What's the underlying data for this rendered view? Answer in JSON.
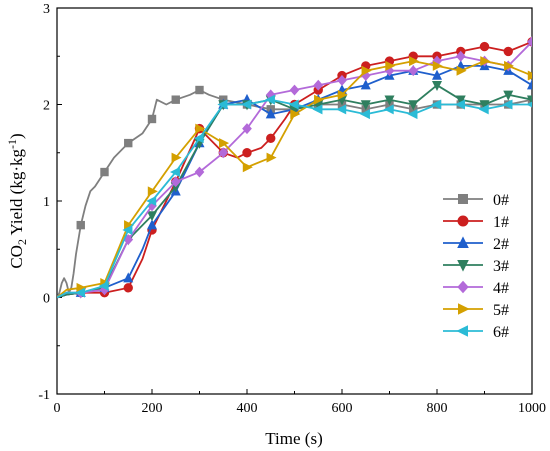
{
  "chart_data": {
    "type": "line",
    "xlabel": "Time (s)",
    "ylabel_main": "CO",
    "ylabel_sub": "2",
    "ylabel_rest": " Yield (kg·kg",
    "ylabel_sup": "-1",
    "ylabel_close": ")",
    "xlim": [
      0,
      1000
    ],
    "ylim": [
      -1,
      3
    ],
    "xticks": [
      "0",
      "200",
      "400",
      "600",
      "800",
      "1000"
    ],
    "yticks": [
      "-1",
      "0",
      "1",
      "2",
      "3"
    ],
    "xtick_values": [
      0,
      200,
      400,
      600,
      800,
      1000
    ],
    "ytick_values": [
      -1,
      0,
      1,
      2,
      3
    ],
    "grid": false,
    "legend_position": "right",
    "series": [
      {
        "name": "0#",
        "color": "#7f7f7f",
        "marker": "square",
        "x": [
          0,
          5,
          10,
          15,
          20,
          25,
          30,
          35,
          40,
          50,
          60,
          70,
          80,
          100,
          120,
          150,
          180,
          200,
          210,
          230,
          250,
          280,
          300,
          320,
          350,
          400,
          450,
          500,
          550,
          600,
          650,
          700,
          750,
          800,
          850,
          900,
          950,
          1000
        ],
        "y": [
          0,
          0.05,
          0.15,
          0.2,
          0.15,
          0.05,
          0.1,
          0.25,
          0.45,
          0.75,
          0.95,
          1.1,
          1.15,
          1.3,
          1.45,
          1.6,
          1.7,
          1.85,
          2.05,
          2.0,
          2.05,
          2.1,
          2.15,
          2.1,
          2.05,
          2.0,
          1.95,
          1.95,
          2.0,
          2.0,
          1.95,
          2.0,
          1.95,
          2.0,
          2.0,
          2.0,
          2.0,
          2.05
        ]
      },
      {
        "name": "1#",
        "color": "#cc1f1f",
        "marker": "circle",
        "x": [
          0,
          20,
          50,
          100,
          150,
          180,
          200,
          250,
          300,
          330,
          350,
          380,
          400,
          430,
          450,
          480,
          500,
          550,
          600,
          650,
          700,
          750,
          800,
          850,
          900,
          950,
          1000
        ],
        "y": [
          0,
          0.03,
          0.05,
          0.05,
          0.1,
          0.4,
          0.7,
          1.2,
          1.75,
          1.6,
          1.5,
          1.45,
          1.5,
          1.55,
          1.65,
          1.85,
          2.0,
          2.15,
          2.3,
          2.4,
          2.45,
          2.5,
          2.5,
          2.55,
          2.6,
          2.55,
          2.65
        ]
      },
      {
        "name": "2#",
        "color": "#1f5fcc",
        "marker": "triangle-up",
        "x": [
          0,
          20,
          50,
          100,
          150,
          180,
          200,
          250,
          300,
          350,
          400,
          450,
          500,
          550,
          600,
          650,
          700,
          750,
          800,
          850,
          900,
          950,
          1000
        ],
        "y": [
          0,
          0.03,
          0.05,
          0.1,
          0.2,
          0.5,
          0.75,
          1.1,
          1.6,
          2.0,
          2.05,
          1.9,
          1.95,
          2.05,
          2.15,
          2.2,
          2.3,
          2.35,
          2.3,
          2.4,
          2.4,
          2.35,
          2.2
        ]
      },
      {
        "name": "3#",
        "color": "#2f7f5f",
        "marker": "triangle-down",
        "x": [
          0,
          20,
          50,
          100,
          150,
          200,
          250,
          300,
          350,
          400,
          450,
          500,
          550,
          600,
          650,
          700,
          750,
          800,
          850,
          900,
          950,
          1000
        ],
        "y": [
          0,
          0.03,
          0.05,
          0.1,
          0.6,
          0.85,
          1.15,
          1.6,
          2.0,
          2.0,
          2.05,
          1.95,
          2.0,
          2.05,
          2.0,
          2.05,
          2.0,
          2.2,
          2.05,
          2.0,
          2.1,
          2.05
        ]
      },
      {
        "name": "4#",
        "color": "#b36ad9",
        "marker": "diamond",
        "x": [
          0,
          20,
          50,
          100,
          150,
          200,
          250,
          300,
          350,
          400,
          450,
          500,
          550,
          600,
          650,
          700,
          750,
          800,
          850,
          900,
          950,
          1000
        ],
        "y": [
          0,
          0.05,
          0.05,
          0.08,
          0.6,
          0.95,
          1.2,
          1.3,
          1.5,
          1.75,
          2.1,
          2.15,
          2.2,
          2.25,
          2.3,
          2.35,
          2.35,
          2.45,
          2.5,
          2.45,
          2.4,
          2.65
        ]
      },
      {
        "name": "5#",
        "color": "#d4a000",
        "marker": "triangle-right",
        "x": [
          0,
          20,
          50,
          100,
          150,
          200,
          250,
          300,
          350,
          400,
          450,
          500,
          550,
          600,
          650,
          700,
          750,
          800,
          850,
          900,
          950,
          1000
        ],
        "y": [
          0,
          0.08,
          0.1,
          0.15,
          0.75,
          1.1,
          1.45,
          1.75,
          1.6,
          1.35,
          1.45,
          1.9,
          2.05,
          2.1,
          2.35,
          2.4,
          2.45,
          2.4,
          2.35,
          2.45,
          2.4,
          2.3
        ]
      },
      {
        "name": "6#",
        "color": "#2bbbd6",
        "marker": "triangle-left",
        "x": [
          0,
          20,
          50,
          100,
          150,
          200,
          250,
          300,
          350,
          400,
          450,
          500,
          550,
          600,
          650,
          700,
          750,
          800,
          850,
          900,
          950,
          1000
        ],
        "y": [
          0,
          0.05,
          0.05,
          0.12,
          0.7,
          1.0,
          1.3,
          1.65,
          2.0,
          2.0,
          2.05,
          2.0,
          1.95,
          1.95,
          1.9,
          1.95,
          1.9,
          2.0,
          2.0,
          1.95,
          2.0,
          2.0
        ]
      }
    ]
  }
}
